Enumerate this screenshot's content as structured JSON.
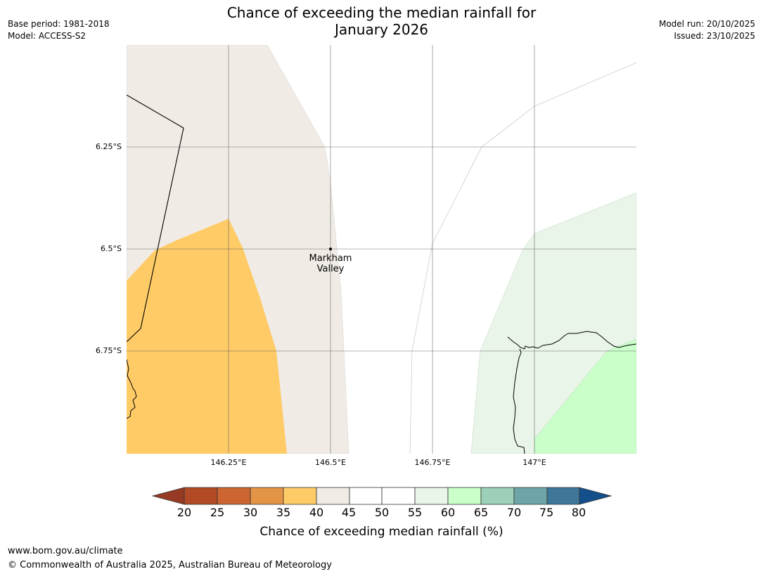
{
  "header": {
    "title_line1": "Chance of exceeding the median rainfall for",
    "title_line2": "January 2026",
    "base_period": "Base period: 1981-2018",
    "model": "Model: ACCESS-S2",
    "model_run": "Model run: 20/10/2025",
    "issued": "Issued: 23/10/2025"
  },
  "map": {
    "lat_labels": [
      "6.25°S",
      "6.5°S",
      "6.75°S"
    ],
    "lon_labels": [
      "146.25°E",
      "146.5°E",
      "146.75°E",
      "147°E"
    ],
    "place": {
      "name_line1": "Markham",
      "name_line2": "Valley"
    }
  },
  "colorbar": {
    "ticks": [
      "20",
      "25",
      "30",
      "35",
      "40",
      "45",
      "50",
      "55",
      "60",
      "65",
      "70",
      "75",
      "80"
    ],
    "colors": {
      "lt20": "#973a24",
      "20-25": "#b14a25",
      "25-30": "#cd6532",
      "30-35": "#e39444",
      "35-40": "#fecb67",
      "40-45": "#f0ebe5",
      "45-50": "#ffffff",
      "50-55": "#ffffff",
      "55-60": "#e9f5e8",
      "60-65": "#caffca",
      "65-70": "#9dd0b8",
      "70-75": "#6ea5a8",
      "75-80": "#3f7798",
      "gt80": "#134f8b"
    },
    "label": "Chance of exceeding median rainfall (%)"
  },
  "footer": {
    "url": "www.bom.gov.au/climate",
    "copyright": "© Commonwealth of Australia 2025, Australian Bureau of Meteorology"
  }
}
